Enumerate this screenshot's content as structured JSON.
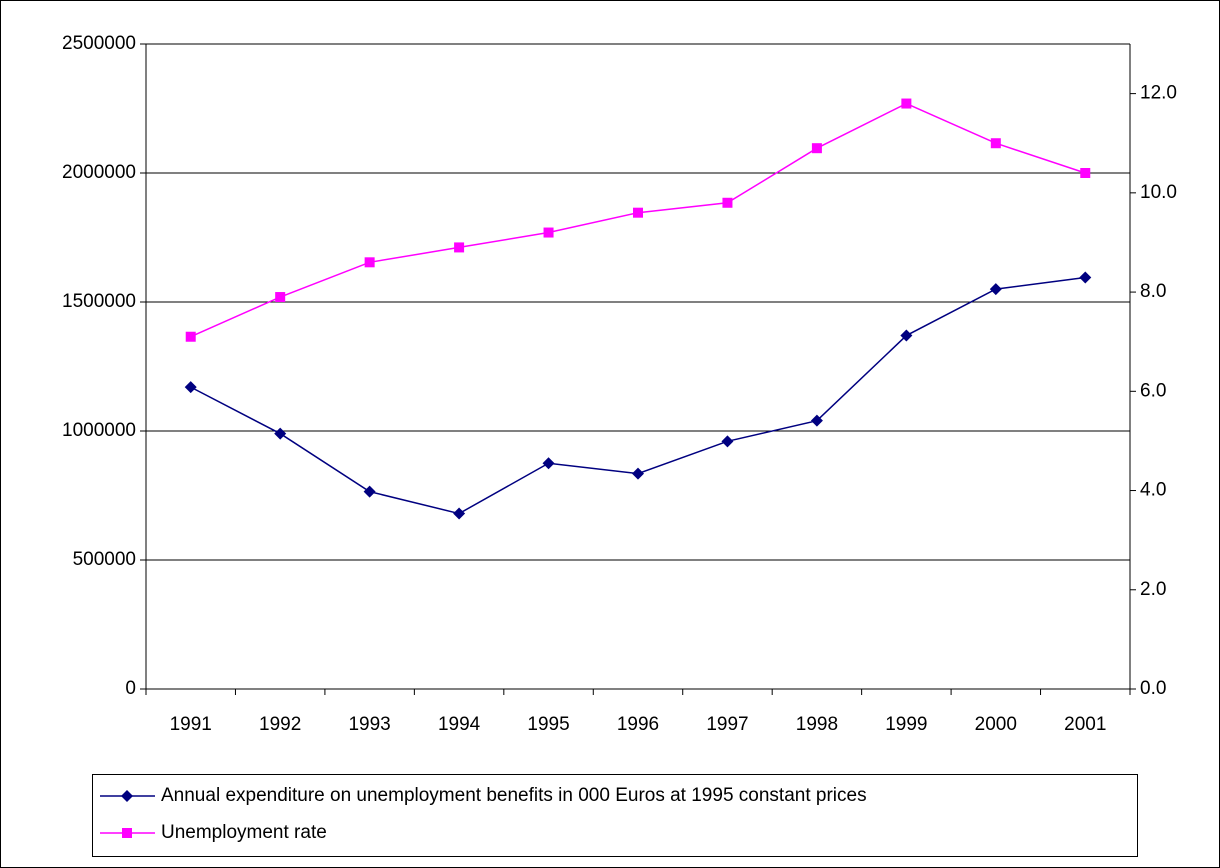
{
  "chart_data": {
    "type": "line",
    "categories": [
      "1991",
      "1992",
      "1993",
      "1994",
      "1995",
      "1996",
      "1997",
      "1998",
      "1999",
      "2000",
      "2001"
    ],
    "series": [
      {
        "name": "Annual expenditure on unemployment benefits in 000 Euros at 1995 constant prices",
        "color": "#000080",
        "marker": "diamond",
        "values": [
          1170000,
          990000,
          765000,
          680000,
          875000,
          835000,
          960000,
          1040000,
          1370000,
          1550000,
          1595000
        ]
      },
      {
        "name": "Unemployment rate",
        "color": "#ff00ff",
        "marker": "square",
        "axis": "y2",
        "values": [
          7.1,
          7.9,
          8.6,
          8.9,
          9.2,
          9.6,
          9.8,
          10.9,
          11.8,
          11.0,
          10.4
        ]
      }
    ],
    "ylim": [
      0,
      2500000
    ],
    "yticks": [
      0,
      500000,
      1000000,
      1500000,
      2000000,
      2500000
    ],
    "y2lim": [
      0,
      13
    ],
    "y2ticks": [
      {
        "value": 0,
        "label": "0.0"
      },
      {
        "value": 2,
        "label": "2.0"
      },
      {
        "value": 4,
        "label": "4.0"
      },
      {
        "value": 6,
        "label": "6.0"
      },
      {
        "value": 8,
        "label": "8.0"
      },
      {
        "value": 10,
        "label": "10.0"
      },
      {
        "value": 12,
        "label": "12.0"
      }
    ],
    "grid": true,
    "legend": "bottom"
  }
}
